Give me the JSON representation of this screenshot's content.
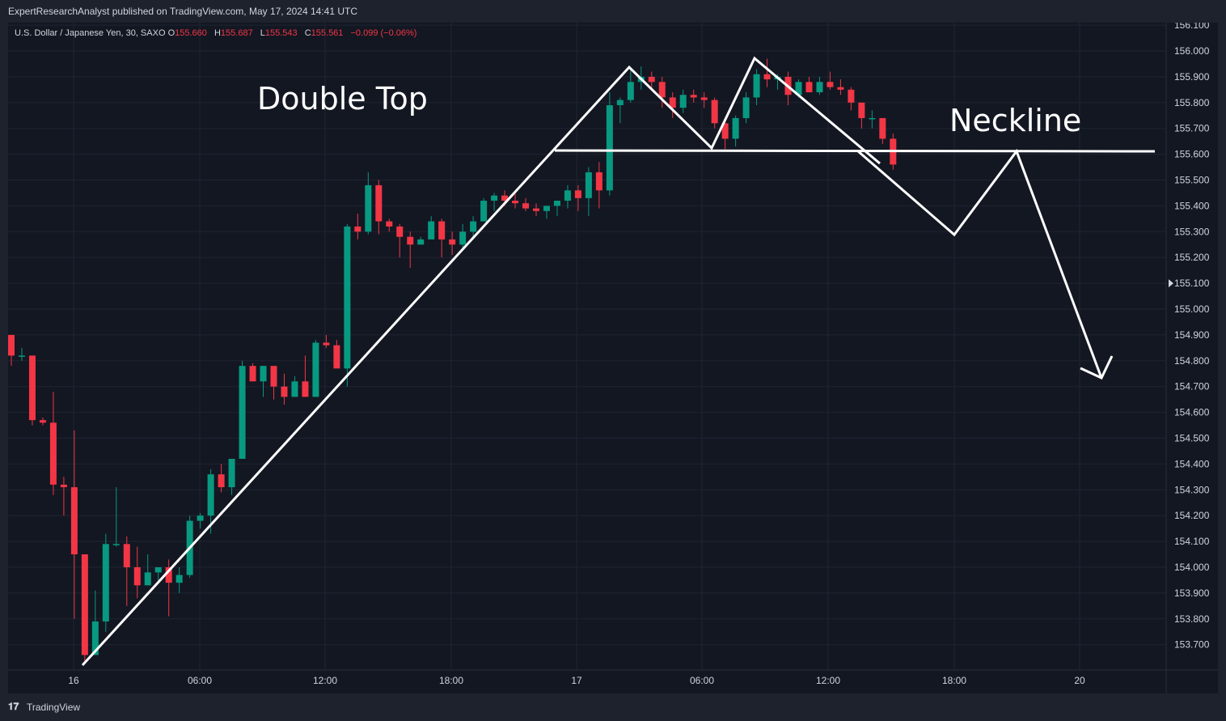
{
  "header": {
    "published_by": "ExpertResearchAnalyst published on TradingView.com, May 17, 2024 14:41 UTC"
  },
  "legend": {
    "symbol": "U.S. Dollar / Japanese Yen, 30, SAXO",
    "open_label": "O",
    "open_value": "155.660",
    "high_label": "H",
    "high_value": "155.687",
    "low_label": "L",
    "low_value": "155.543",
    "close_label": "C",
    "close_value": "155.561",
    "change": "−0.099 (−0.06%)"
  },
  "footer": {
    "brand": "TradingView"
  },
  "colors": {
    "background": "#131722",
    "up": "#089981",
    "down": "#f23645",
    "grid": "#1f2433",
    "axis_text": "#d1d4dc",
    "drawing": "#ffffff"
  },
  "chart_data": {
    "type": "candlestick",
    "title": "",
    "xlabel": "",
    "ylabel": "",
    "ylim": [
      153.6,
      156.1
    ],
    "y_ticks": [
      "156.100",
      "156.000",
      "155.900",
      "155.800",
      "155.700",
      "155.600",
      "155.500",
      "155.400",
      "155.300",
      "155.200",
      "155.100",
      "155.000",
      "154.900",
      "154.800",
      "154.700",
      "154.600",
      "154.500",
      "154.400",
      "154.300",
      "154.200",
      "154.100",
      "154.000",
      "153.900",
      "153.800",
      "153.700"
    ],
    "x_ticks": [
      "16",
      "06:00",
      "12:00",
      "18:00",
      "17",
      "06:00",
      "12:00",
      "18:00",
      "20"
    ],
    "annotations": [
      "Double Top",
      "Neckline"
    ],
    "candles": [
      {
        "o": 154.9,
        "h": 154.9,
        "l": 154.78,
        "c": 154.82
      },
      {
        "o": 154.82,
        "h": 154.85,
        "l": 154.8,
        "c": 154.82
      },
      {
        "o": 154.82,
        "h": 154.82,
        "l": 154.55,
        "c": 154.57
      },
      {
        "o": 154.57,
        "h": 154.58,
        "l": 154.55,
        "c": 154.56
      },
      {
        "o": 154.56,
        "h": 154.68,
        "l": 154.28,
        "c": 154.32
      },
      {
        "o": 154.32,
        "h": 154.35,
        "l": 154.2,
        "c": 154.31
      },
      {
        "o": 154.31,
        "h": 154.53,
        "l": 153.8,
        "c": 154.05
      },
      {
        "o": 154.05,
        "h": 154.05,
        "l": 153.63,
        "c": 153.66
      },
      {
        "o": 153.66,
        "h": 153.91,
        "l": 153.66,
        "c": 153.79
      },
      {
        "o": 153.79,
        "h": 154.13,
        "l": 153.75,
        "c": 154.09
      },
      {
        "o": 154.09,
        "h": 154.31,
        "l": 154.08,
        "c": 154.09
      },
      {
        "o": 154.09,
        "h": 154.12,
        "l": 153.85,
        "c": 154.0
      },
      {
        "o": 154.0,
        "h": 154.08,
        "l": 153.88,
        "c": 153.93
      },
      {
        "o": 153.93,
        "h": 154.05,
        "l": 153.93,
        "c": 153.98
      },
      {
        "o": 153.98,
        "h": 154.0,
        "l": 153.95,
        "c": 154.0
      },
      {
        "o": 154.0,
        "h": 154.03,
        "l": 153.81,
        "c": 153.94
      },
      {
        "o": 153.94,
        "h": 154.0,
        "l": 153.9,
        "c": 153.97
      },
      {
        "o": 153.97,
        "h": 154.2,
        "l": 153.96,
        "c": 154.18
      },
      {
        "o": 154.18,
        "h": 154.21,
        "l": 154.15,
        "c": 154.2
      },
      {
        "o": 154.2,
        "h": 154.38,
        "l": 154.13,
        "c": 154.36
      },
      {
        "o": 154.36,
        "h": 154.4,
        "l": 154.29,
        "c": 154.31
      },
      {
        "o": 154.31,
        "h": 154.42,
        "l": 154.28,
        "c": 154.42
      },
      {
        "o": 154.42,
        "h": 154.8,
        "l": 154.42,
        "c": 154.78
      },
      {
        "o": 154.78,
        "h": 154.79,
        "l": 154.72,
        "c": 154.72
      },
      {
        "o": 154.72,
        "h": 154.78,
        "l": 154.66,
        "c": 154.78
      },
      {
        "o": 154.78,
        "h": 154.78,
        "l": 154.65,
        "c": 154.7
      },
      {
        "o": 154.7,
        "h": 154.75,
        "l": 154.63,
        "c": 154.66
      },
      {
        "o": 154.66,
        "h": 154.74,
        "l": 154.66,
        "c": 154.72
      },
      {
        "o": 154.72,
        "h": 154.82,
        "l": 154.66,
        "c": 154.66
      },
      {
        "o": 154.66,
        "h": 154.88,
        "l": 154.66,
        "c": 154.87
      },
      {
        "o": 154.87,
        "h": 154.9,
        "l": 154.85,
        "c": 154.86
      },
      {
        "o": 154.86,
        "h": 154.88,
        "l": 154.78,
        "c": 154.77
      },
      {
        "o": 154.77,
        "h": 155.33,
        "l": 154.7,
        "c": 155.32
      },
      {
        "o": 155.32,
        "h": 155.37,
        "l": 155.27,
        "c": 155.3
      },
      {
        "o": 155.3,
        "h": 155.53,
        "l": 155.29,
        "c": 155.48
      },
      {
        "o": 155.48,
        "h": 155.5,
        "l": 155.29,
        "c": 155.34
      },
      {
        "o": 155.34,
        "h": 155.35,
        "l": 155.3,
        "c": 155.32
      },
      {
        "o": 155.32,
        "h": 155.33,
        "l": 155.2,
        "c": 155.28
      },
      {
        "o": 155.28,
        "h": 155.3,
        "l": 155.16,
        "c": 155.25
      },
      {
        "o": 155.25,
        "h": 155.28,
        "l": 155.25,
        "c": 155.27
      },
      {
        "o": 155.27,
        "h": 155.36,
        "l": 155.27,
        "c": 155.34
      },
      {
        "o": 155.34,
        "h": 155.35,
        "l": 155.2,
        "c": 155.27
      },
      {
        "o": 155.27,
        "h": 155.3,
        "l": 155.21,
        "c": 155.25
      },
      {
        "o": 155.25,
        "h": 155.33,
        "l": 155.23,
        "c": 155.3
      },
      {
        "o": 155.3,
        "h": 155.36,
        "l": 155.28,
        "c": 155.34
      },
      {
        "o": 155.34,
        "h": 155.43,
        "l": 155.34,
        "c": 155.42
      },
      {
        "o": 155.42,
        "h": 155.45,
        "l": 155.38,
        "c": 155.44
      },
      {
        "o": 155.44,
        "h": 155.46,
        "l": 155.4,
        "c": 155.42
      },
      {
        "o": 155.42,
        "h": 155.45,
        "l": 155.39,
        "c": 155.41
      },
      {
        "o": 155.41,
        "h": 155.43,
        "l": 155.38,
        "c": 155.39
      },
      {
        "o": 155.39,
        "h": 155.41,
        "l": 155.36,
        "c": 155.38
      },
      {
        "o": 155.38,
        "h": 155.4,
        "l": 155.35,
        "c": 155.4
      },
      {
        "o": 155.4,
        "h": 155.42,
        "l": 155.36,
        "c": 155.42
      },
      {
        "o": 155.42,
        "h": 155.48,
        "l": 155.39,
        "c": 155.46
      },
      {
        "o": 155.46,
        "h": 155.48,
        "l": 155.38,
        "c": 155.43
      },
      {
        "o": 155.43,
        "h": 155.55,
        "l": 155.36,
        "c": 155.53
      },
      {
        "o": 155.53,
        "h": 155.57,
        "l": 155.39,
        "c": 155.46
      },
      {
        "o": 155.46,
        "h": 155.84,
        "l": 155.44,
        "c": 155.79
      },
      {
        "o": 155.79,
        "h": 155.82,
        "l": 155.72,
        "c": 155.81
      },
      {
        "o": 155.81,
        "h": 155.93,
        "l": 155.8,
        "c": 155.88
      },
      {
        "o": 155.88,
        "h": 155.94,
        "l": 155.85,
        "c": 155.9
      },
      {
        "o": 155.9,
        "h": 155.92,
        "l": 155.85,
        "c": 155.88
      },
      {
        "o": 155.88,
        "h": 155.9,
        "l": 155.78,
        "c": 155.82
      },
      {
        "o": 155.82,
        "h": 155.84,
        "l": 155.74,
        "c": 155.78
      },
      {
        "o": 155.78,
        "h": 155.85,
        "l": 155.76,
        "c": 155.83
      },
      {
        "o": 155.83,
        "h": 155.85,
        "l": 155.8,
        "c": 155.82
      },
      {
        "o": 155.82,
        "h": 155.84,
        "l": 155.78,
        "c": 155.81
      },
      {
        "o": 155.81,
        "h": 155.82,
        "l": 155.7,
        "c": 155.72
      },
      {
        "o": 155.72,
        "h": 155.74,
        "l": 155.62,
        "c": 155.66
      },
      {
        "o": 155.66,
        "h": 155.75,
        "l": 155.63,
        "c": 155.74
      },
      {
        "o": 155.74,
        "h": 155.84,
        "l": 155.72,
        "c": 155.82
      },
      {
        "o": 155.82,
        "h": 155.93,
        "l": 155.79,
        "c": 155.91
      },
      {
        "o": 155.91,
        "h": 155.97,
        "l": 155.86,
        "c": 155.89
      },
      {
        "o": 155.89,
        "h": 155.91,
        "l": 155.85,
        "c": 155.9
      },
      {
        "o": 155.9,
        "h": 155.92,
        "l": 155.79,
        "c": 155.83
      },
      {
        "o": 155.83,
        "h": 155.89,
        "l": 155.82,
        "c": 155.88
      },
      {
        "o": 155.88,
        "h": 155.9,
        "l": 155.84,
        "c": 155.84
      },
      {
        "o": 155.84,
        "h": 155.9,
        "l": 155.83,
        "c": 155.88
      },
      {
        "o": 155.88,
        "h": 155.92,
        "l": 155.85,
        "c": 155.86
      },
      {
        "o": 155.86,
        "h": 155.89,
        "l": 155.83,
        "c": 155.85
      },
      {
        "o": 155.85,
        "h": 155.86,
        "l": 155.77,
        "c": 155.8
      },
      {
        "o": 155.8,
        "h": 155.8,
        "l": 155.7,
        "c": 155.74
      },
      {
        "o": 155.74,
        "h": 155.77,
        "l": 155.7,
        "c": 155.74
      },
      {
        "o": 155.74,
        "h": 155.74,
        "l": 155.64,
        "c": 155.66
      },
      {
        "o": 155.66,
        "h": 155.68,
        "l": 155.54,
        "c": 155.56
      }
    ]
  }
}
